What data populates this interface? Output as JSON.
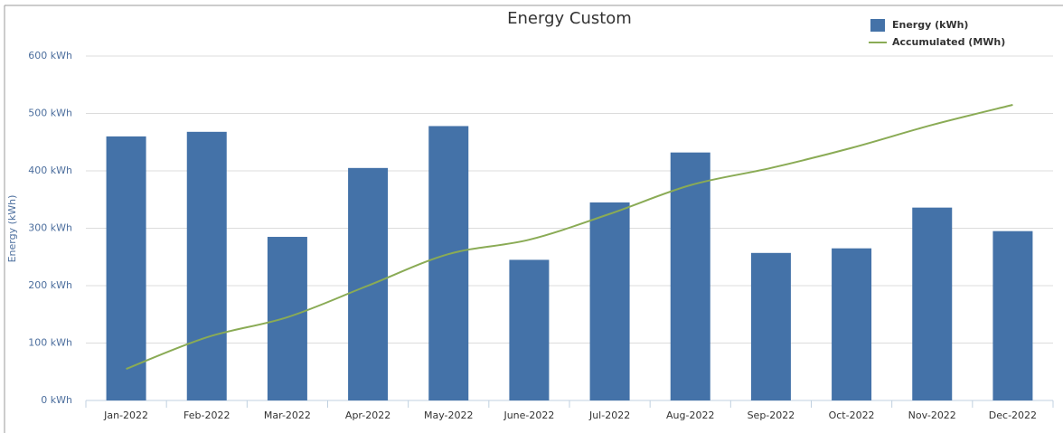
{
  "chart_data": {
    "type": "bar_line",
    "title": "Energy Custom",
    "y_label": "Energy (kWh)",
    "categories": [
      "Jan-2022",
      "Feb-2022",
      "Mar-2022",
      "Apr-2022",
      "May-2022",
      "June-2022",
      "Jul-2022",
      "Aug-2022",
      "Sep-2022",
      "Oct-2022",
      "Nov-2022",
      "Dec-2022"
    ],
    "series": [
      {
        "name": "Energy (kWh)",
        "type": "bar",
        "color": "#4472a8",
        "values": [
          460,
          468,
          285,
          405,
          478,
          245,
          345,
          432,
          257,
          265,
          336,
          295
        ]
      },
      {
        "name": "Accumulated (MWh)",
        "type": "line",
        "color": "#8aab55",
        "values": [
          55,
          110,
          145,
          200,
          255,
          280,
          325,
          375,
          405,
          440,
          480,
          515
        ]
      }
    ],
    "ylim": [
      0,
      600
    ],
    "yticks": [
      {
        "value": 0,
        "label": "0 kWh"
      },
      {
        "value": 100,
        "label": "100 kWh"
      },
      {
        "value": 200,
        "label": "200 kWh"
      },
      {
        "value": 300,
        "label": "300 kWh"
      },
      {
        "value": 400,
        "label": "400 kWh"
      },
      {
        "value": 500,
        "label": "500 kWh"
      },
      {
        "value": 600,
        "label": "600 kWh"
      }
    ],
    "grid": true,
    "legend": "top-right"
  }
}
